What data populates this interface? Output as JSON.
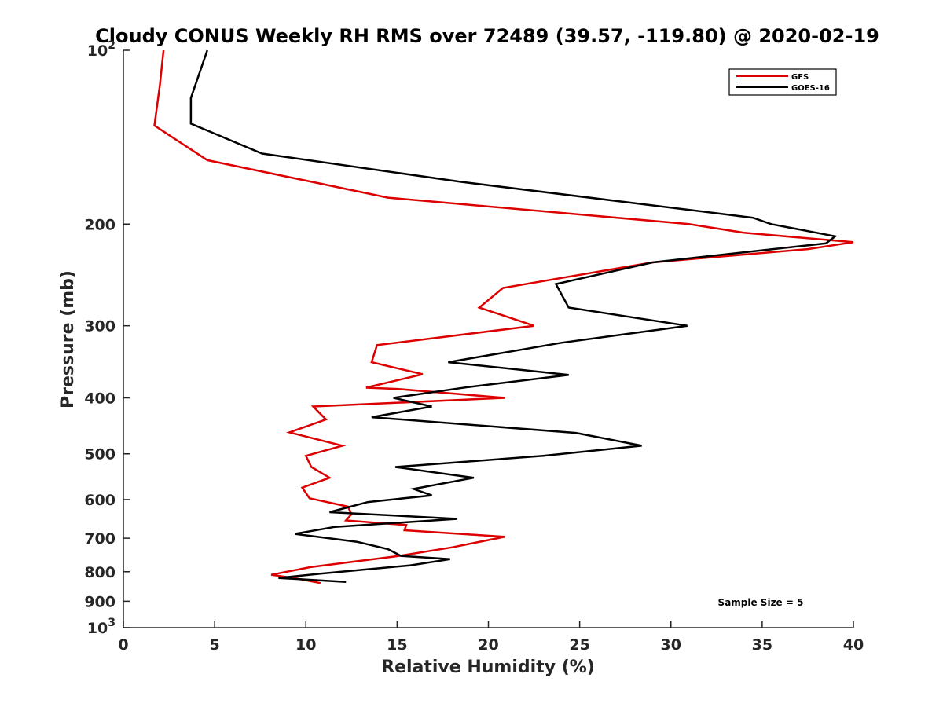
{
  "chart_data": {
    "type": "line",
    "title": "Cloudy CONUS Weekly RH RMS over 72489 (39.57, -119.80) @ 2020-02-19",
    "xlabel": "Relative Humidity (%)",
    "ylabel": "Pressure (mb)",
    "xlim": [
      0,
      40
    ],
    "ylim": [
      100,
      1000
    ],
    "y_scale": "log",
    "y_reversed": true,
    "grid": false,
    "legend_position": "top-right",
    "x_ticks": [
      0,
      5,
      10,
      15,
      20,
      25,
      30,
      35,
      40
    ],
    "y_ticks": [
      {
        "value": 100,
        "label": "10",
        "sup": "2"
      },
      {
        "value": 200,
        "label": "200"
      },
      {
        "value": 300,
        "label": "300"
      },
      {
        "value": 400,
        "label": "400"
      },
      {
        "value": 500,
        "label": "500"
      },
      {
        "value": 600,
        "label": "600"
      },
      {
        "value": 700,
        "label": "700"
      },
      {
        "value": 800,
        "label": "800"
      },
      {
        "value": 900,
        "label": "900"
      },
      {
        "value": 1000,
        "label": "10",
        "sup": "3"
      }
    ],
    "annotation": "Sample Size = 5",
    "series": [
      {
        "name": "GFS",
        "color": "#dd0000",
        "points": [
          [
            2.2,
            100
          ],
          [
            2.0,
            115
          ],
          [
            1.7,
            135
          ],
          [
            4.6,
            155
          ],
          [
            14.5,
            180
          ],
          [
            31.0,
            200
          ],
          [
            34.0,
            207
          ],
          [
            40.0,
            215
          ],
          [
            37.5,
            221
          ],
          [
            29.0,
            233
          ],
          [
            20.8,
            258
          ],
          [
            19.5,
            279
          ],
          [
            22.5,
            300
          ],
          [
            13.9,
            324
          ],
          [
            13.6,
            347
          ],
          [
            16.4,
            364
          ],
          [
            13.3,
            384
          ],
          [
            15.0,
            386
          ],
          [
            20.9,
            400
          ],
          [
            10.4,
            414
          ],
          [
            11.1,
            436
          ],
          [
            9.1,
            459
          ],
          [
            12.0,
            484
          ],
          [
            10.0,
            504
          ],
          [
            10.3,
            527
          ],
          [
            11.3,
            550
          ],
          [
            9.8,
            572
          ],
          [
            10.2,
            597
          ],
          [
            12.3,
            617
          ],
          [
            12.5,
            636
          ],
          [
            12.2,
            652
          ],
          [
            15.5,
            664
          ],
          [
            15.4,
            678
          ],
          [
            20.9,
            696
          ],
          [
            18.0,
            726
          ],
          [
            15.0,
            752
          ],
          [
            10.3,
            785
          ],
          [
            8.1,
            810
          ],
          [
            9.5,
            822
          ],
          [
            10.8,
            837
          ]
        ]
      },
      {
        "name": "GOES-16",
        "color": "#000000",
        "points": [
          [
            4.6,
            100
          ],
          [
            3.7,
            121
          ],
          [
            3.7,
            134
          ],
          [
            7.6,
            151
          ],
          [
            18.5,
            169
          ],
          [
            34.5,
            195
          ],
          [
            35.5,
            200
          ],
          [
            39.0,
            210
          ],
          [
            38.5,
            216
          ],
          [
            35.0,
            222
          ],
          [
            29.0,
            233
          ],
          [
            23.7,
            254
          ],
          [
            24.4,
            279
          ],
          [
            30.9,
            300
          ],
          [
            24.0,
            321
          ],
          [
            17.8,
            347
          ],
          [
            24.4,
            365
          ],
          [
            18.9,
            383
          ],
          [
            14.8,
            400
          ],
          [
            16.9,
            414
          ],
          [
            13.6,
            432
          ],
          [
            24.8,
            460
          ],
          [
            28.4,
            484
          ],
          [
            23.0,
            504
          ],
          [
            14.9,
            527
          ],
          [
            19.2,
            550
          ],
          [
            15.9,
            575
          ],
          [
            16.9,
            590
          ],
          [
            13.4,
            606
          ],
          [
            11.3,
            631
          ],
          [
            18.3,
            648
          ],
          [
            11.6,
            669
          ],
          [
            9.4,
            688
          ],
          [
            12.8,
            710
          ],
          [
            14.5,
            731
          ],
          [
            15.2,
            751
          ],
          [
            17.9,
            761
          ],
          [
            15.7,
            780
          ],
          [
            10.8,
            806
          ],
          [
            8.5,
            820
          ],
          [
            12.2,
            833
          ]
        ]
      }
    ]
  }
}
